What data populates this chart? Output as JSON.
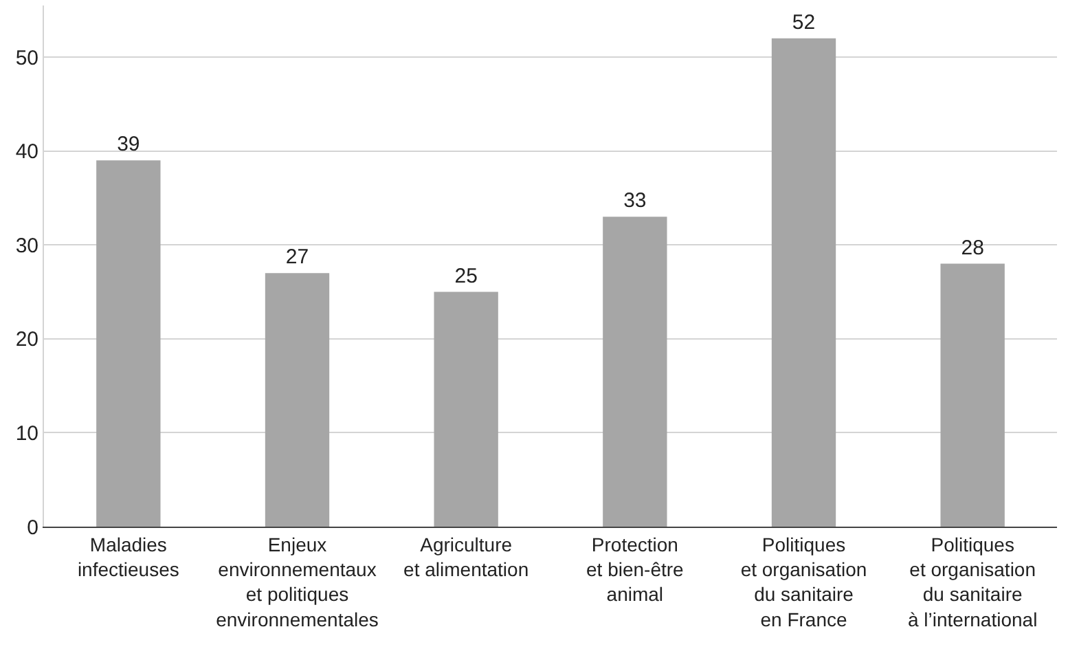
{
  "chart_data": {
    "type": "bar",
    "categories": [
      "Maladies\ninfectieuses",
      "Enjeux\nenvironnementaux\net politiques\nenvironnementales",
      "Agriculture\net alimentation",
      "Protection\net bien-être\nanimal",
      "Politiques\net organisation\ndu sanitaire\nen France",
      "Politiques\net organisation\ndu sanitaire\nà l’international"
    ],
    "values": [
      39,
      27,
      25,
      33,
      52,
      28
    ],
    "color": "#a6a6a6",
    "ylim": [
      0,
      55.5
    ],
    "yticks": [
      0,
      10,
      20,
      30,
      40,
      50
    ],
    "grid": "y",
    "data_labels": true,
    "legend": false
  }
}
